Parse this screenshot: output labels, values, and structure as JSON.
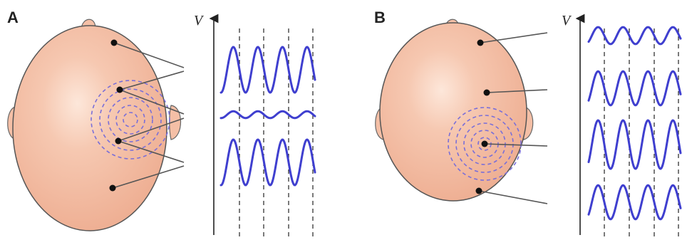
{
  "panels": [
    {
      "letter": "A",
      "y_axis_label": "V",
      "trace_amplitudes": [
        1.0,
        0.15,
        1.0
      ],
      "electrodes": 4
    },
    {
      "letter": "B",
      "y_axis_label": "V",
      "trace_amplitudes": [
        0.35,
        0.7,
        1.0,
        0.7
      ],
      "electrodes": 4
    }
  ],
  "colors": {
    "head_fill": "#f4bfa6",
    "head_stroke": "#555555",
    "signal": "#3f3fcf",
    "dipole_rings": "#7a6fd8",
    "leads": "#555555"
  }
}
